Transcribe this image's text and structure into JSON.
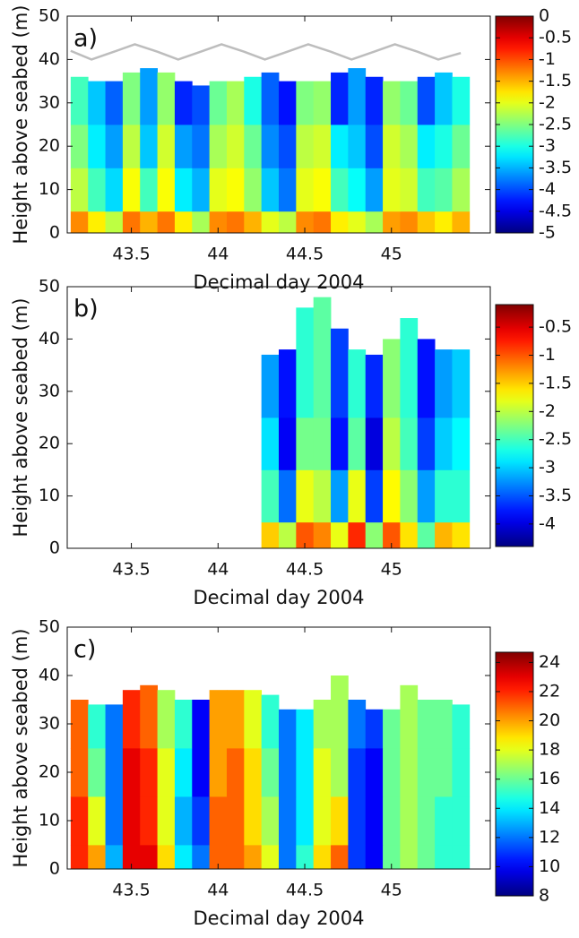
{
  "chart_data": [
    {
      "type": "heatmap",
      "panel_label": "a)",
      "xlabel": "Decimal day 2004",
      "ylabel": "Height above seabed (m)",
      "xlim": [
        43.13,
        45.57
      ],
      "xticks": [
        43.5,
        44,
        44.5,
        45
      ],
      "ylim": [
        0,
        50
      ],
      "yticks": [
        0,
        10,
        20,
        30,
        40,
        50
      ],
      "colormap": "jet",
      "clim": [
        -5,
        0
      ],
      "cticks": [
        0,
        -0.5,
        -1,
        -1.5,
        -2,
        -2.5,
        -3,
        -3.5,
        -4,
        -4.5,
        -5
      ],
      "xbins": [
        43.15,
        43.25,
        43.35,
        43.45,
        43.55,
        43.65,
        43.75,
        43.85,
        43.95,
        44.05,
        44.15,
        44.25,
        44.35,
        44.45,
        44.55,
        44.65,
        44.75,
        44.85,
        44.95,
        45.05,
        45.15,
        45.25,
        45.35,
        45.45
      ],
      "ybins": [
        0,
        5,
        15,
        25
      ],
      "top": [
        36,
        35,
        35,
        37,
        38,
        37,
        35,
        34,
        35,
        35,
        36,
        37,
        35,
        35,
        35,
        37,
        38,
        36,
        35,
        35,
        36,
        37,
        36
      ],
      "z": [
        [
          -1.3,
          -1.8,
          -2.2,
          -1.2,
          -1.5,
          -1.2,
          -1.8,
          -2.3,
          -1.3,
          -1.2,
          -1.5,
          -2.0,
          -2.2,
          -1.3,
          -1.2,
          -1.8,
          -2.0,
          -2.3,
          -1.4,
          -1.3,
          -1.6,
          -1.8,
          -1.5
        ],
        [
          -2.2,
          -2.8,
          -3.3,
          -1.9,
          -2.8,
          -1.9,
          -3.2,
          -3.5,
          -2.0,
          -1.9,
          -2.4,
          -3.4,
          -3.8,
          -2.0,
          -1.9,
          -2.8,
          -3.1,
          -3.6,
          -2.0,
          -2.1,
          -2.8,
          -2.7,
          -2.3
        ],
        [
          -2.5,
          -3.2,
          -3.6,
          -2.2,
          -3.4,
          -2.1,
          -3.6,
          -3.8,
          -2.3,
          -2.1,
          -2.6,
          -3.7,
          -4.0,
          -2.2,
          -2.1,
          -3.2,
          -3.4,
          -4.0,
          -2.1,
          -2.3,
          -3.2,
          -3.0,
          -2.6
        ],
        [
          -2.8,
          -3.4,
          -3.9,
          -2.5,
          -3.6,
          -2.4,
          -4.2,
          -4.0,
          -2.6,
          -2.3,
          -3.0,
          -3.9,
          -4.3,
          -2.5,
          -2.4,
          -4.2,
          -3.6,
          -4.2,
          -2.4,
          -2.6,
          -4.0,
          -3.4,
          -3.0
        ]
      ],
      "overlay": {
        "color": "#bdbdbd",
        "x": [
          43.15,
          43.27,
          43.4,
          43.52,
          43.65,
          43.77,
          43.9,
          44.02,
          44.15,
          44.27,
          44.4,
          44.52,
          44.65,
          44.77,
          44.9,
          45.02,
          45.15,
          45.27,
          45.4
        ],
        "y": [
          42,
          40,
          41.8,
          43.5,
          41.8,
          40,
          41.8,
          43.5,
          41.8,
          40,
          41.8,
          43.5,
          41.8,
          40,
          41.8,
          43.5,
          41.8,
          40,
          41.5
        ]
      }
    },
    {
      "type": "heatmap",
      "panel_label": "b)",
      "xlabel": "Decimal day 2004",
      "ylabel": "Height above seabed (m)",
      "xlim": [
        43.13,
        45.57
      ],
      "xticks": [
        43.5,
        44,
        44.5,
        45
      ],
      "ylim": [
        0,
        50
      ],
      "yticks": [
        0,
        10,
        20,
        30,
        40,
        50
      ],
      "colormap": "jet",
      "clim": [
        -4.4,
        -0.1
      ],
      "cticks": [
        -0.5,
        -1,
        -1.5,
        -2,
        -2.5,
        -3,
        -3.5,
        -4
      ],
      "xbins": [
        43.15,
        43.25,
        43.35,
        43.45,
        43.55,
        43.65,
        43.75,
        43.85,
        43.95,
        44.05,
        44.15,
        44.25,
        44.35,
        44.45,
        44.55,
        44.65,
        44.75,
        44.85,
        44.95,
        45.05,
        45.15,
        45.25,
        45.35,
        45.45
      ],
      "ybins": [
        0,
        5,
        15,
        25
      ],
      "top": [
        null,
        null,
        null,
        null,
        null,
        null,
        null,
        null,
        null,
        null,
        null,
        37,
        38,
        46,
        48,
        42,
        38,
        37,
        40,
        44,
        40,
        38,
        38
      ],
      "z": [
        [
          null,
          null,
          null,
          null,
          null,
          null,
          null,
          null,
          null,
          null,
          null,
          -1.5,
          -2.0,
          -1.0,
          -1.2,
          -1.8,
          -0.8,
          -2.2,
          -1.0,
          -1.6,
          -2.4,
          -1.4,
          -1.6
        ],
        [
          null,
          null,
          null,
          null,
          null,
          null,
          null,
          null,
          null,
          null,
          null,
          -2.5,
          -3.4,
          -1.8,
          -2.0,
          -3.2,
          -1.8,
          -3.6,
          -1.7,
          -2.2,
          -3.2,
          -2.6,
          -2.6
        ],
        [
          null,
          null,
          null,
          null,
          null,
          null,
          null,
          null,
          null,
          null,
          null,
          -2.9,
          -3.9,
          -2.3,
          -2.3,
          -3.8,
          -2.4,
          -4.0,
          -2.0,
          -2.5,
          -3.6,
          -3.0,
          -2.8
        ],
        [
          null,
          null,
          null,
          null,
          null,
          null,
          null,
          null,
          null,
          null,
          null,
          -3.2,
          -3.8,
          -2.6,
          -2.4,
          -3.6,
          -2.6,
          -3.7,
          -2.2,
          -2.6,
          -3.8,
          -3.2,
          -3.0
        ]
      ]
    },
    {
      "type": "heatmap",
      "panel_label": "c)",
      "xlabel": "Decimal day 2004",
      "ylabel": "Height above seabed (m)",
      "xlim": [
        43.13,
        45.57
      ],
      "xticks": [
        43.5,
        44,
        44.5,
        45
      ],
      "ylim": [
        0,
        50
      ],
      "yticks": [
        0,
        10,
        20,
        30,
        40,
        50
      ],
      "colormap": "jet",
      "clim": [
        8,
        24.7
      ],
      "cticks": [
        24,
        22,
        20,
        18,
        16,
        14,
        12,
        10,
        8
      ],
      "xbins": [
        43.15,
        43.25,
        43.35,
        43.45,
        43.55,
        43.65,
        43.75,
        43.85,
        43.95,
        44.05,
        44.15,
        44.25,
        44.35,
        44.45,
        44.55,
        44.65,
        44.75,
        44.85,
        44.95,
        45.05,
        45.15,
        45.25,
        45.35,
        45.45
      ],
      "ybins": [
        0,
        5,
        15,
        25
      ],
      "top": [
        35,
        34,
        34,
        37,
        38,
        37,
        35,
        35,
        37,
        37,
        37,
        36,
        33,
        33,
        35,
        40,
        35,
        33,
        33,
        38,
        35,
        35,
        34
      ],
      "z": [
        [
          22,
          20,
          13,
          23,
          23,
          19,
          14,
          12,
          21,
          21,
          20,
          18,
          12,
          15,
          19,
          21,
          11,
          10,
          16,
          17,
          16,
          15,
          15
        ],
        [
          22,
          18,
          12,
          23,
          22,
          18,
          13,
          11,
          21,
          21,
          19,
          17,
          12,
          14,
          18,
          19,
          11,
          10,
          16,
          17,
          16,
          15,
          15
        ],
        [
          21,
          16,
          12,
          23,
          22,
          18,
          14,
          10,
          20,
          21,
          19,
          16,
          12,
          14,
          18,
          17,
          11,
          10,
          16,
          17,
          16,
          16,
          15
        ],
        [
          21,
          15,
          12,
          22,
          21,
          17,
          15,
          10,
          20,
          20,
          18,
          15,
          12,
          14,
          17,
          17,
          12,
          11,
          16,
          17,
          16,
          16,
          15
        ]
      ]
    }
  ]
}
